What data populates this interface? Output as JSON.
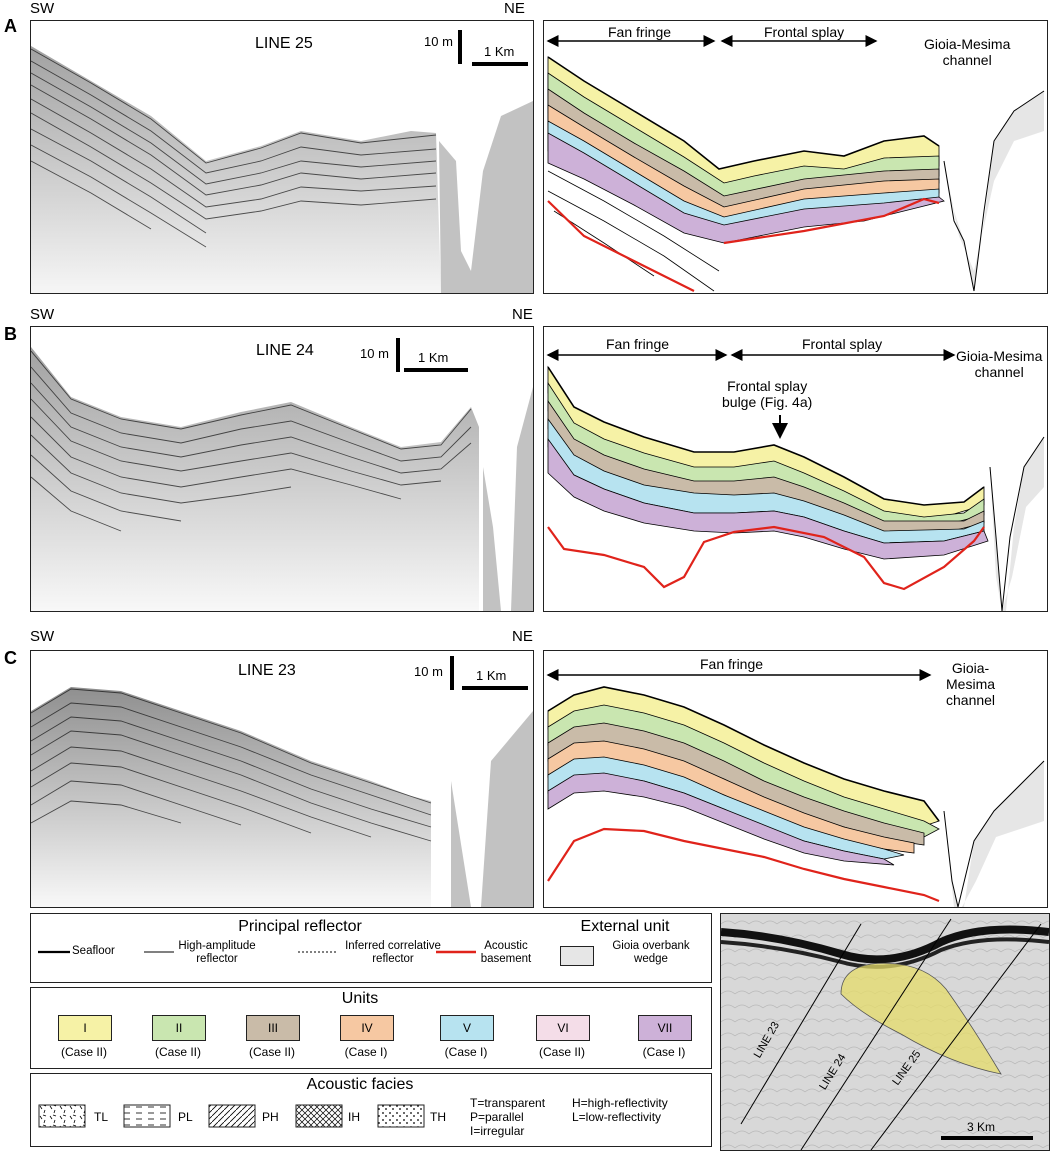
{
  "panels": [
    {
      "letter": "A",
      "left_dir": "SW",
      "right_dir": "NE",
      "line": "LINE 25",
      "vscale": "10 m",
      "hscale": "1 Km",
      "zones": [
        "Fan fringe",
        "Frontal splay"
      ],
      "channel": "Gioia-Mesima\nchannel"
    },
    {
      "letter": "B",
      "left_dir": "SW",
      "right_dir": "NE",
      "line": "LINE 24",
      "vscale": "10 m",
      "hscale": "1 Km",
      "zones": [
        "Fan fringe",
        "Frontal splay"
      ],
      "channel": "Gioia-Mesima\nchannel",
      "annotation": "Frontal splay\nbulge (Fig. 4a)"
    },
    {
      "letter": "C",
      "left_dir": "SW",
      "right_dir": "NE",
      "line": "LINE 23",
      "vscale": "10 m",
      "hscale": "1 Km",
      "zones": [
        "Fan fringe"
      ],
      "channel": "Gioia-\nMesima\nchannel"
    }
  ],
  "legend": {
    "reflector_title": "Principal reflector",
    "external_title": "External unit",
    "reflectors": [
      "Seafloor",
      "High-amplitude\nreflector",
      "Inferred correlative\nreflector",
      "Acoustic\nbasement"
    ],
    "external": "Gioia overbank\nwedge",
    "units_title": "Units",
    "units": [
      {
        "id": "I",
        "case": "(Case II)",
        "color": "#f6f2a6"
      },
      {
        "id": "II",
        "case": "(Case II)",
        "color": "#c9e6b0"
      },
      {
        "id": "III",
        "case": "(Case II)",
        "color": "#c9bba8"
      },
      {
        "id": "IV",
        "case": "(Case I)",
        "color": "#f6c8a2"
      },
      {
        "id": "V",
        "case": "(Case I)",
        "color": "#b7e3f0"
      },
      {
        "id": "VI",
        "case": "(Case II)",
        "color": "#f4dde8"
      },
      {
        "id": "VII",
        "case": "(Case I)",
        "color": "#cdb1d8"
      }
    ],
    "facies_title": "Acoustic facies",
    "facies": [
      "TL",
      "PL",
      "PH",
      "IH",
      "TH"
    ],
    "facies_key_1": "T=transparent\nP=parallel\nI=irregular",
    "facies_key_2": "H=high-reflectivity\nL=low-reflectivity"
  },
  "map": {
    "lines": [
      "LINE 23",
      "LINE 24",
      "LINE 25"
    ],
    "scale": "3 Km"
  },
  "colors": {
    "basement": "#e0231b",
    "overbank": "#e6e6e6",
    "fan": "#e5dc6a"
  }
}
